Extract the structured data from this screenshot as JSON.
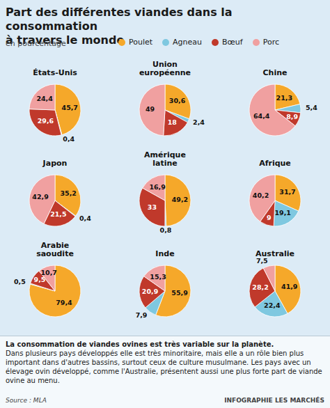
{
  "chart_data": {
    "type": "pie",
    "title": "Part des différentes viandes dans la consommation\nà travers le monde",
    "subtitle": "en pourcentage",
    "categories": [
      "Poulet",
      "Agneau",
      "Bœuf",
      "Porc"
    ],
    "colors": [
      "#f5a82a",
      "#7fc8e0",
      "#c0392b",
      "#f0a0a0"
    ],
    "legend": "top",
    "data_labels": true,
    "series": [
      {
        "name": "États-Unis",
        "values": [
          45.7,
          0.4,
          29.6,
          24.4
        ],
        "value_labels": [
          "45,7",
          "0,4",
          "29,6",
          "24,4"
        ]
      },
      {
        "name": "Union\neuropéenne",
        "values": [
          30.6,
          2.4,
          18.0,
          49.0
        ],
        "value_labels": [
          "30,6",
          "2,4",
          "18",
          "49"
        ]
      },
      {
        "name": "Chine",
        "values": [
          21.3,
          5.4,
          8.9,
          64.4
        ],
        "value_labels": [
          "21,3",
          "5,4",
          "8,9",
          "64,4"
        ]
      },
      {
        "name": "Japon",
        "values": [
          35.2,
          0.4,
          21.5,
          42.9
        ],
        "value_labels": [
          "35,2",
          "0,4",
          "21,5",
          "42,9"
        ]
      },
      {
        "name": "Amérique\nlatine",
        "values": [
          49.2,
          0.8,
          33.0,
          16.9
        ],
        "value_labels": [
          "49,2",
          "0,8",
          "33",
          "16,9"
        ]
      },
      {
        "name": "Afrique",
        "values": [
          31.7,
          19.1,
          9.0,
          40.2
        ],
        "value_labels": [
          "31,7",
          "19,1",
          "9",
          "40,2"
        ]
      },
      {
        "name": "Arabie\nsaoudite",
        "values": [
          79.4,
          0.5,
          9.5,
          10.7
        ],
        "value_labels": [
          "79,4",
          "0,5",
          "9,5",
          "10,7"
        ]
      },
      {
        "name": "Inde",
        "values": [
          55.9,
          7.9,
          20.9,
          15.3
        ],
        "value_labels": [
          "55,9",
          "7,9",
          "20,9",
          "15,3"
        ]
      },
      {
        "name": "Australie",
        "values": [
          41.9,
          22.4,
          28.2,
          7.5
        ],
        "value_labels": [
          "41,9",
          "22,4",
          "28,2",
          "7,5"
        ]
      }
    ],
    "annotations": [
      "La consommation de viandes ovines est très variable sur la planète.",
      " Dans plusieurs pays développés elle est très minoritaire, mais elle a un rôle bien plus important dans d'autres bassins, surtout ceux de culture musulmane. Les pays avec un élevage ovin développé, comme l'Australie, présentent aussi une plus forte part de viande ovine au menu.",
      "Source : MLA",
      "INFOGRAPHIE LES MARCHÉS"
    ]
  }
}
